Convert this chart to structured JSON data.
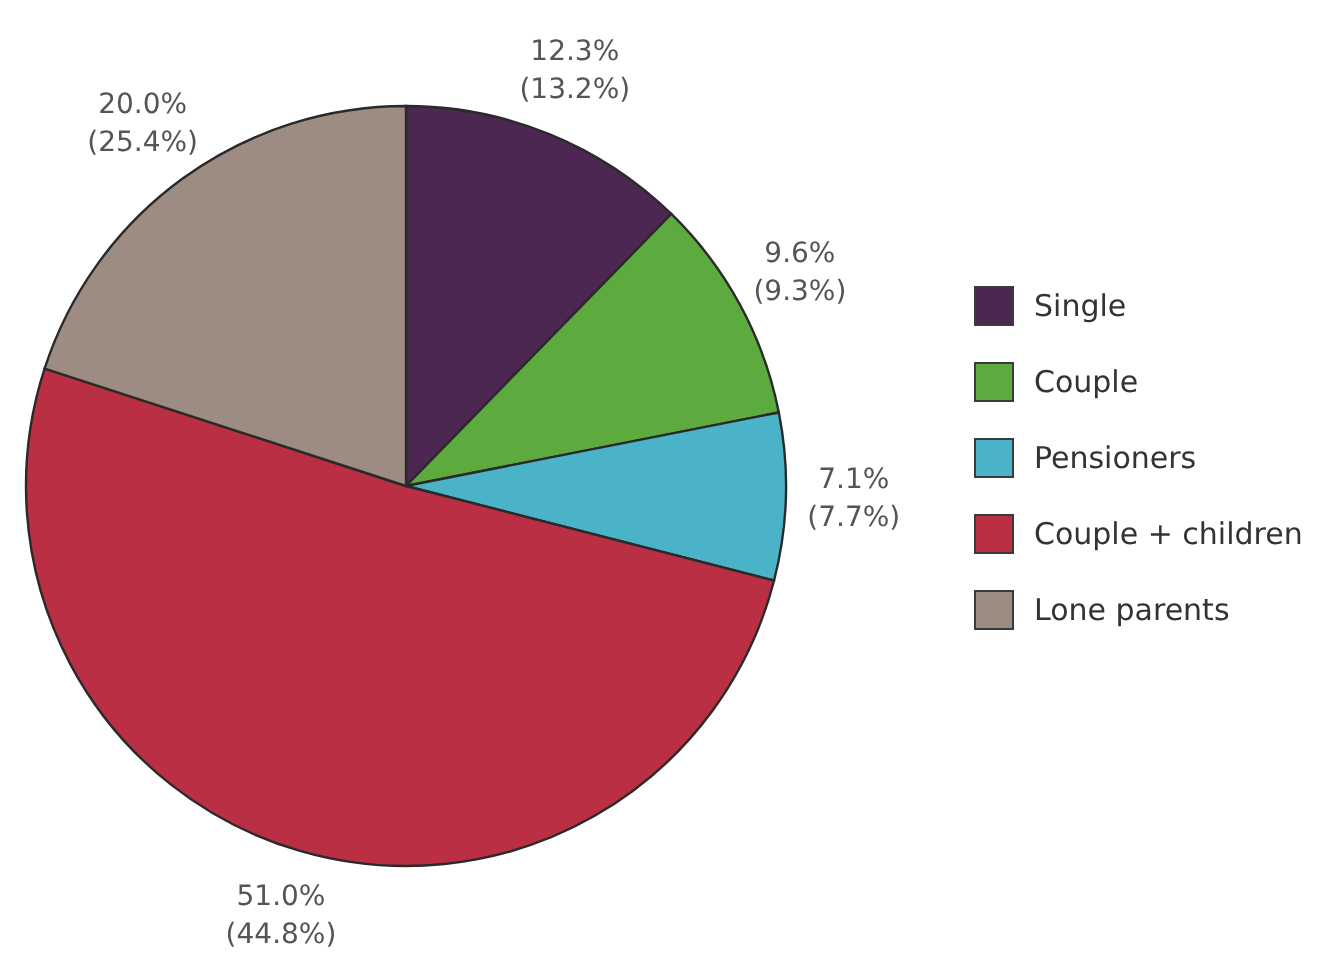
{
  "chart_data": {
    "type": "pie",
    "categories": [
      "Single",
      "Couple",
      "Pensioners",
      "Couple + children",
      "Lone parents"
    ],
    "values": [
      12.3,
      9.6,
      7.1,
      51.0,
      20.0
    ],
    "colors": [
      "#4b2752",
      "#5dab3f",
      "#4bb3c8",
      "#bb2f44",
      "#9d8c81"
    ],
    "value_labels": [
      "12.3%\n(13.2%)",
      "9.6%\n(9.3%)",
      "7.1%\n(7.7%)",
      "51.0%\n(44.8%)",
      "20.0%\n(25.4%)"
    ],
    "legend": "right"
  }
}
